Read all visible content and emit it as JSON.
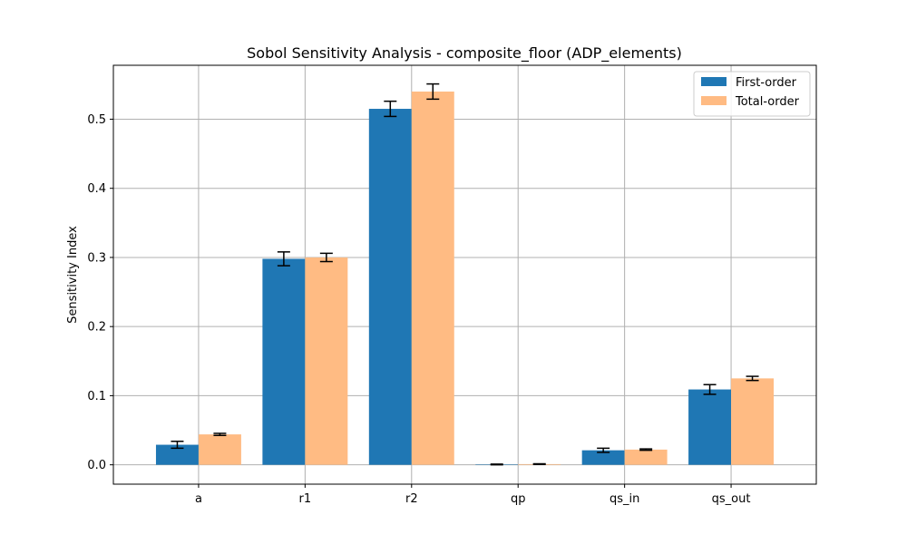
{
  "chart_data": {
    "type": "bar",
    "title": "Sobol Sensitivity Analysis - composite_floor (ADP_elements)",
    "xlabel": "",
    "ylabel": "Sensitivity Index",
    "categories": [
      "a",
      "r1",
      "r2",
      "qp",
      "qs_in",
      "qs_out"
    ],
    "series": [
      {
        "name": "First-order",
        "color": "#1f77b4",
        "values": [
          0.029,
          0.298,
          0.515,
          0.0005,
          0.021,
          0.109
        ],
        "errors": [
          0.005,
          0.01,
          0.011,
          0.0005,
          0.003,
          0.007
        ]
      },
      {
        "name": "Total-order",
        "color": "#ffbb83",
        "values": [
          0.044,
          0.3,
          0.54,
          0.001,
          0.022,
          0.125
        ],
        "errors": [
          0.0015,
          0.006,
          0.011,
          0.0005,
          0.001,
          0.003
        ]
      }
    ],
    "ylim": [
      -0.028,
      0.578
    ],
    "yticks": [
      "0.0",
      "0.1",
      "0.2",
      "0.3",
      "0.4",
      "0.5"
    ],
    "grid": true,
    "legend_position": "top-right"
  }
}
